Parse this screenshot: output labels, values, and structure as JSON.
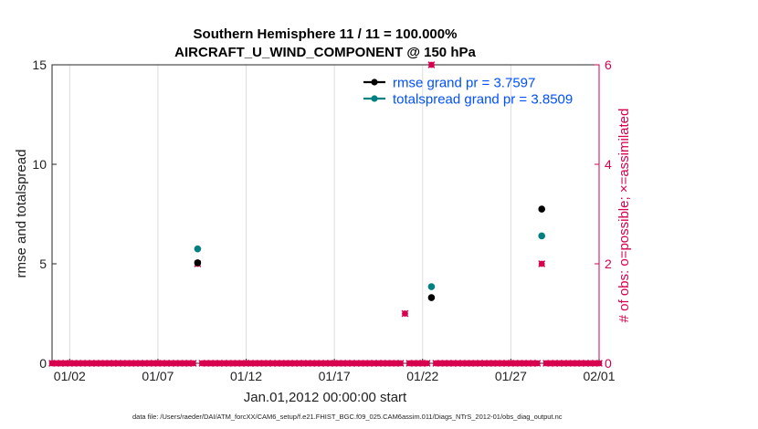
{
  "chart_data": {
    "type": "scatter",
    "title_line1": "Southern Hemisphere 11 / 11 = 100.000%",
    "title_line2": "AIRCRAFT_U_WIND_COMPONENT @ 150 hPa",
    "xlabel": "Jan.01,2012 00:00:00 start",
    "ylabel_left": "rmse and totalspread",
    "ylabel_right": "# of obs: o=possible; ×=assimilated",
    "xlim": [
      1.0,
      32.0
    ],
    "ylim_left": [
      0,
      15
    ],
    "ylim_right": [
      0,
      6
    ],
    "x_ticks": [
      {
        "x": 2,
        "label": "01/02"
      },
      {
        "x": 7,
        "label": "01/07"
      },
      {
        "x": 12,
        "label": "01/12"
      },
      {
        "x": 17,
        "label": "01/17"
      },
      {
        "x": 22,
        "label": "01/22"
      },
      {
        "x": 27,
        "label": "01/27"
      },
      {
        "x": 32,
        "label": "02/01"
      }
    ],
    "y_ticks_left": [
      "0",
      "5",
      "10",
      "15"
    ],
    "y_ticks_right": [
      "0",
      "2",
      "4",
      "6"
    ],
    "series": [
      {
        "name": "rmse",
        "color": "#000000",
        "points": [
          {
            "x": 9.25,
            "y": 5.05
          },
          {
            "x": 22.5,
            "y": 3.3
          },
          {
            "x": 28.75,
            "y": 7.75
          }
        ]
      },
      {
        "name": "totalspread",
        "color": "#008080",
        "points": [
          {
            "x": 9.25,
            "y": 5.75
          },
          {
            "x": 22.5,
            "y": 3.85
          },
          {
            "x": 28.75,
            "y": 6.4
          }
        ]
      }
    ],
    "obs_possible": {
      "color": "#d6004f",
      "nonzero": [
        {
          "x": 9.25,
          "n": 2
        },
        {
          "x": 21.0,
          "n": 1
        },
        {
          "x": 22.5,
          "n": 6
        },
        {
          "x": 28.75,
          "n": 2
        }
      ],
      "interval_days": 0.25
    },
    "legend": [
      {
        "label": "rmse grand pr = 3.7597",
        "color": "#000000"
      },
      {
        "label": "totalspread grand pr = 3.8509",
        "color": "#008080"
      }
    ],
    "footer": "data file: /Users/raeder/DAI/ATM_forcXX/CAM6_setup/f.e21.FHIST_BGC.f09_025.CAM6assim.011/Diags_NTrS_2012-01/obs_diag_output.nc"
  },
  "colors": {
    "axis_right": "#d6004f",
    "grid": "#d9d9d9",
    "legend_text": "#0050ff"
  }
}
